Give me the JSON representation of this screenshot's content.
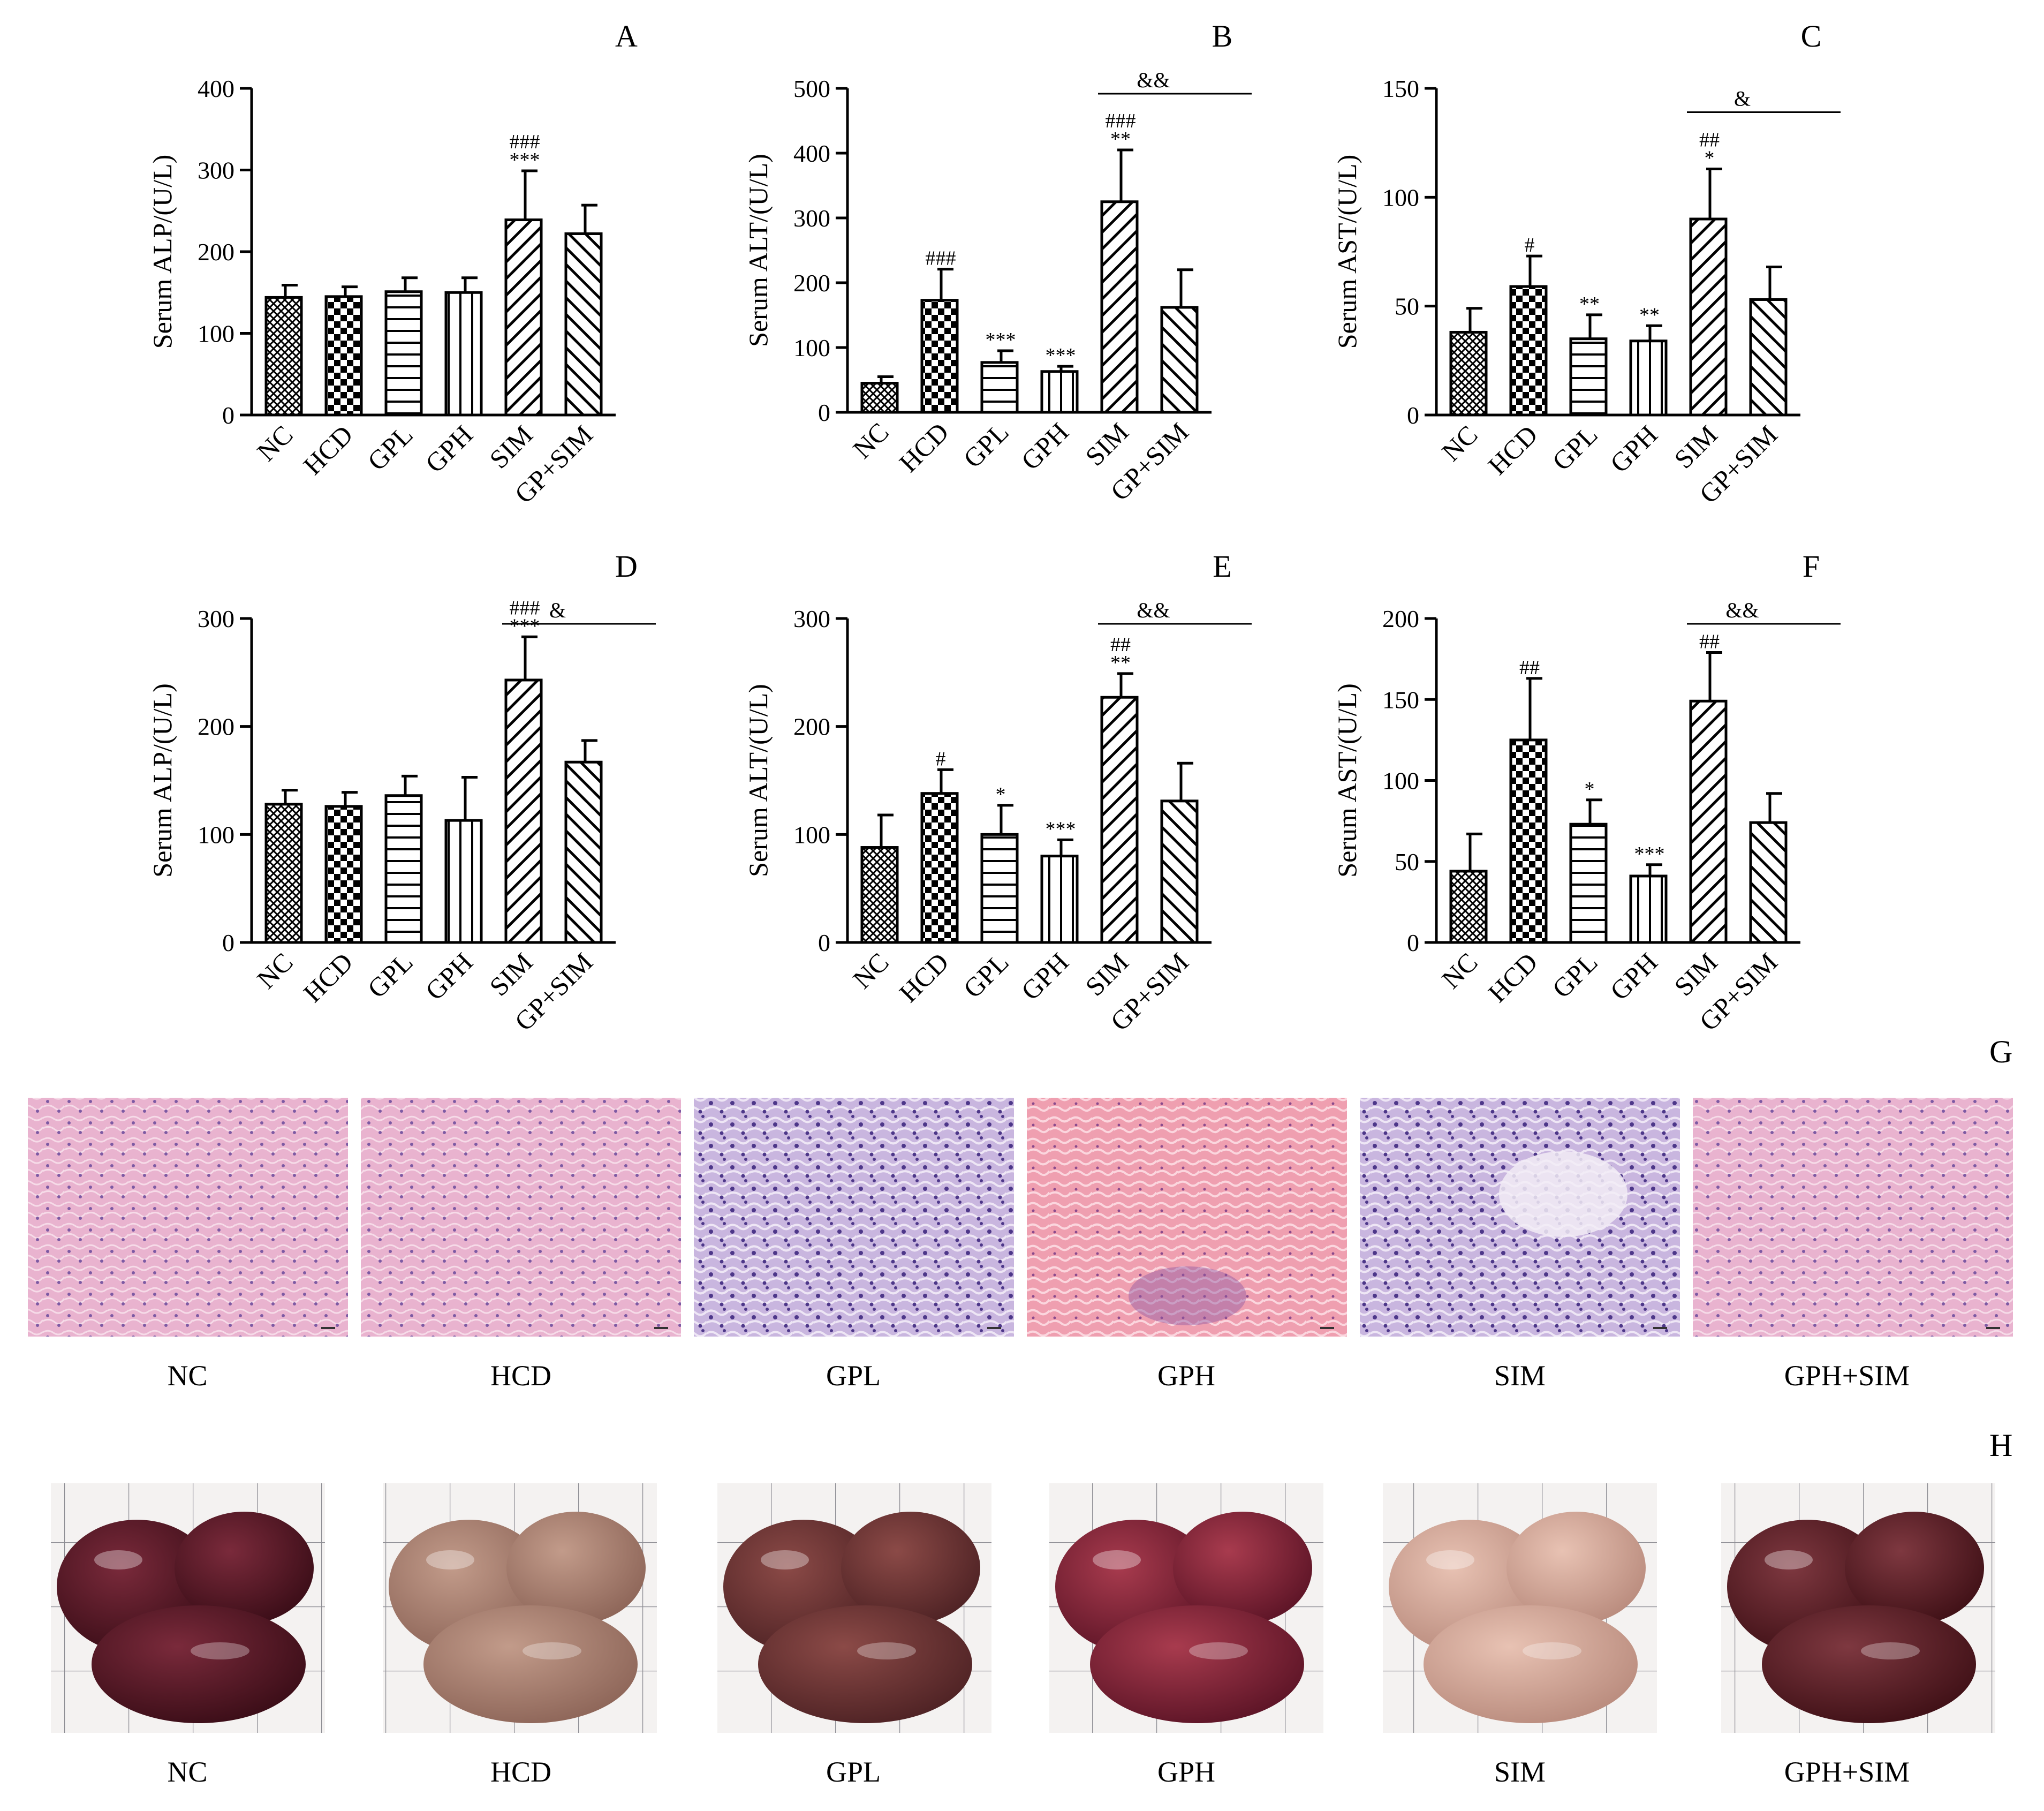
{
  "colors": {
    "ink": "#000000",
    "histo_pink": "#e6a9c8",
    "histo_purple": "#b7a2d6",
    "liver_dark": "#4b1421",
    "liver_light": "#b88f7f",
    "grid_paper": "#f3f1ef"
  },
  "chart_data": [
    {
      "panel": "A",
      "type": "bar",
      "categories": [
        "NC",
        "HCD",
        "GPL",
        "GPH",
        "SIM",
        "GP+SIM"
      ],
      "values": [
        144,
        145,
        151,
        150,
        239,
        222
      ],
      "errors": [
        15,
        12,
        17,
        18,
        60,
        35
      ],
      "annotations": [
        "",
        "",
        "",
        "",
        "###\n***",
        ""
      ],
      "bracket": null,
      "ylabel": "Serum ALP/(U/L)",
      "ylim": [
        0,
        400
      ],
      "yticks": [
        0,
        100,
        200,
        300,
        400
      ]
    },
    {
      "panel": "B",
      "type": "bar",
      "categories": [
        "NC",
        "HCD",
        "GPL",
        "GPH",
        "SIM",
        "GP+SIM"
      ],
      "values": [
        45,
        173,
        77,
        63,
        325,
        162
      ],
      "errors": [
        10,
        48,
        18,
        8,
        80,
        58
      ],
      "annotations": [
        "",
        "###",
        "***",
        "***",
        "###\n**",
        ""
      ],
      "bracket": {
        "from": 4,
        "to": 5,
        "label": "&&"
      },
      "ylabel": "Serum ALT/(U/L)",
      "ylim": [
        0,
        500
      ],
      "yticks": [
        0,
        100,
        200,
        300,
        400,
        500
      ]
    },
    {
      "panel": "C",
      "type": "bar",
      "categories": [
        "NC",
        "HCD",
        "GPL",
        "GPH",
        "SIM",
        "GP+SIM"
      ],
      "values": [
        38,
        59,
        35,
        34,
        90,
        53
      ],
      "errors": [
        11,
        14,
        11,
        7,
        23,
        15
      ],
      "annotations": [
        "",
        "#",
        "**",
        "**",
        "##\n*",
        ""
      ],
      "bracket": {
        "from": 4,
        "to": 5,
        "label": "&"
      },
      "ylabel": "Serum AST/(U/L)",
      "ylim": [
        0,
        150
      ],
      "yticks": [
        0,
        50,
        100,
        150
      ]
    },
    {
      "panel": "D",
      "type": "bar",
      "categories": [
        "NC",
        "HCD",
        "GPL",
        "GPH",
        "SIM",
        "GP+SIM"
      ],
      "values": [
        128,
        126,
        136,
        113,
        243,
        167
      ],
      "errors": [
        13,
        13,
        18,
        40,
        40,
        20
      ],
      "annotations": [
        "",
        "",
        "",
        "",
        "###\n***",
        ""
      ],
      "bracket": {
        "from": 4,
        "to": 5,
        "label": "&"
      },
      "ylabel": "Serum ALP/(U/L)",
      "ylim": [
        0,
        300
      ],
      "yticks": [
        0,
        100,
        200,
        300
      ]
    },
    {
      "panel": "E",
      "type": "bar",
      "categories": [
        "NC",
        "HCD",
        "GPL",
        "GPH",
        "SIM",
        "GP+SIM"
      ],
      "values": [
        88,
        138,
        100,
        80,
        227,
        131
      ],
      "errors": [
        30,
        22,
        27,
        15,
        22,
        35
      ],
      "annotations": [
        "",
        "#",
        "*",
        "***",
        "##\n**",
        ""
      ],
      "bracket": {
        "from": 4,
        "to": 5,
        "label": "&&"
      },
      "ylabel": "Serum ALT/(U/L)",
      "ylim": [
        0,
        300
      ],
      "yticks": [
        0,
        100,
        200,
        300
      ]
    },
    {
      "panel": "F",
      "type": "bar",
      "categories": [
        "NC",
        "HCD",
        "GPL",
        "GPH",
        "SIM",
        "GP+SIM"
      ],
      "values": [
        44,
        125,
        73,
        41,
        149,
        74
      ],
      "errors": [
        23,
        38,
        15,
        7,
        30,
        18
      ],
      "annotations": [
        "",
        "##",
        "*",
        "***",
        "##",
        ""
      ],
      "bracket": {
        "from": 4,
        "to": 5,
        "label": "&&"
      },
      "ylabel": "Serum AST/(U/L)",
      "ylim": [
        0,
        200
      ],
      "yticks": [
        0,
        50,
        100,
        150,
        200
      ]
    }
  ],
  "panel_g": {
    "letter": "G",
    "captions": [
      "NC",
      "HCD",
      "GPL",
      "GPH",
      "SIM",
      "GPH+SIM"
    ]
  },
  "panel_h": {
    "letter": "H",
    "captions": [
      "NC",
      "HCD",
      "GPL",
      "GPH",
      "SIM",
      "GPH+SIM"
    ]
  }
}
